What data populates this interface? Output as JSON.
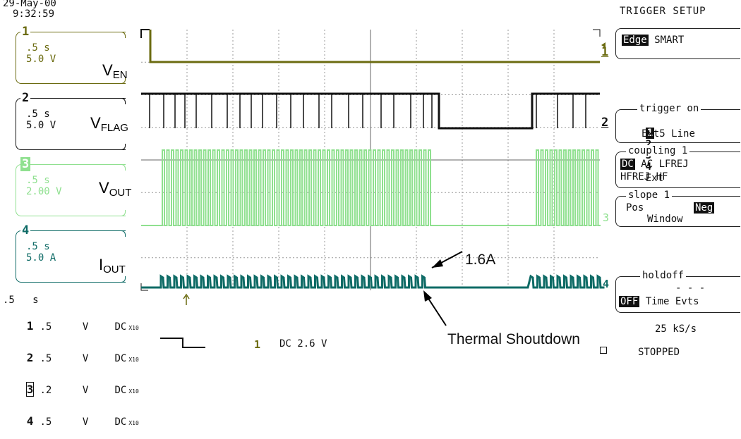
{
  "header": {
    "date": "29-May-00",
    "time": "9:32:59",
    "menu_title": "TRIGGER SETUP"
  },
  "colors": {
    "ch1": "#6b6b10",
    "ch2": "#111111",
    "ch3": "#8fe08f",
    "ch4": "#0e6b66",
    "grid": "#999999"
  },
  "channels": [
    {
      "num": "1",
      "time": ".5 s",
      "scale": "5.0 V"
    },
    {
      "num": "2",
      "time": ".5 s",
      "scale": "5.0 V"
    },
    {
      "num": "3",
      "time": ".5 s",
      "scale": "2.00 V"
    },
    {
      "num": "4",
      "time": ".5 s",
      "scale": "5.0 A"
    }
  ],
  "trace_labels": {
    "ven": {
      "main": "V",
      "sub": "EN"
    },
    "vflag": {
      "main": "V",
      "sub": "FLAG"
    },
    "vout": {
      "main": "V",
      "sub": "OUT"
    },
    "iout": {
      "main": "I",
      "sub": "OUT"
    }
  },
  "trace_markers": [
    "1",
    "2",
    "3",
    "4"
  ],
  "annotations": {
    "current": "1.6A",
    "shutdown": "Thermal Shoutdown"
  },
  "menu": {
    "mode": {
      "selected": "Edge",
      "other": "SMART"
    },
    "trigger_on": {
      "title": "trigger on",
      "sources": [
        "1",
        "2",
        "3",
        "4"
      ],
      "ext": "Ext",
      "ext5": "Ext5",
      "line": "Line"
    },
    "coupling": {
      "title": "coupling 1",
      "selected": "DC",
      "row1_rest": "AC LFREJ",
      "row2": "HFREJ HF"
    },
    "slope": {
      "title": "slope 1",
      "pos": "Pos",
      "neg": "Neg",
      "window": "Window"
    },
    "holdoff": {
      "title": "holdoff",
      "dashes": "- - -",
      "selected": "OFF",
      "rest": "Time Evts"
    }
  },
  "footer": {
    "timebase": ".5   s",
    "rows": [
      {
        "ch": "1",
        "scale": ".5",
        "unit": "V",
        "coupling": "DC",
        "probe": "X10"
      },
      {
        "ch": "2",
        "scale": ".5",
        "unit": "V",
        "coupling": "DC",
        "probe": "X10"
      },
      {
        "ch": "3",
        "scale": ".2",
        "unit": "V",
        "coupling": "DC",
        "probe": "X10"
      },
      {
        "ch": "4",
        "scale": ".5",
        "unit": "V",
        "coupling": "DC",
        "probe": "X10"
      }
    ],
    "trigger_ch": "1",
    "trigger_info": "DC 2.6 V",
    "sample_rate": "25 kS/s",
    "status": "STOPPED"
  }
}
